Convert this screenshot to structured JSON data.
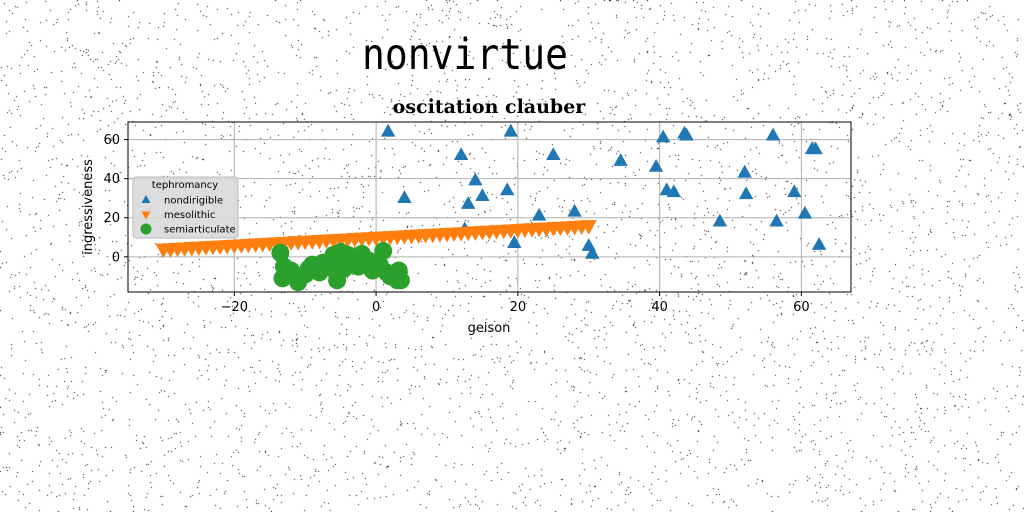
{
  "page": {
    "title": "nonvirtue"
  },
  "chart_data": {
    "type": "scatter",
    "title": "oscitation clauber",
    "xlabel": "geison",
    "ylabel": "ingressiveness",
    "xlim": [
      -35,
      67
    ],
    "ylim": [
      -18,
      69
    ],
    "xticks": [
      -20,
      0,
      20,
      40,
      60
    ],
    "yticks": [
      0,
      20,
      40,
      60
    ],
    "grid": true,
    "legend": {
      "title": "tephromancy",
      "placement": "upper-left"
    },
    "series": [
      {
        "name": "nondirigible",
        "marker": "triangle-up",
        "color": "#1f77b4",
        "points": [
          [
            1.7,
            64
          ],
          [
            4,
            30
          ],
          [
            12,
            52
          ],
          [
            12.5,
            14
          ],
          [
            13,
            27
          ],
          [
            14,
            39
          ],
          [
            15,
            31
          ],
          [
            18.5,
            34
          ],
          [
            19,
            64
          ],
          [
            19.5,
            7
          ],
          [
            23,
            21
          ],
          [
            25,
            52
          ],
          [
            28,
            23
          ],
          [
            30,
            5.5
          ],
          [
            30.5,
            1.5
          ],
          [
            34.5,
            49
          ],
          [
            39.5,
            46
          ],
          [
            40.5,
            61
          ],
          [
            41,
            34
          ],
          [
            42,
            33
          ],
          [
            43.5,
            63
          ],
          [
            43.8,
            62
          ],
          [
            48.5,
            18
          ],
          [
            52,
            43
          ],
          [
            52.2,
            32
          ],
          [
            56,
            62
          ],
          [
            56.5,
            18
          ],
          [
            59,
            33
          ],
          [
            60.5,
            22
          ],
          [
            61.5,
            55
          ],
          [
            62,
            55
          ],
          [
            62.5,
            6
          ]
        ]
      },
      {
        "name": "mesolithic",
        "marker": "triangle-down",
        "color": "#ff7f0e",
        "points": [
          [
            -30,
            4
          ],
          [
            -29,
            4.2
          ],
          [
            -28,
            4.4
          ],
          [
            -27,
            4.6
          ],
          [
            -26,
            4.8
          ],
          [
            -25,
            5
          ],
          [
            -24,
            5.2
          ],
          [
            -23,
            5.4
          ],
          [
            -22,
            5.6
          ],
          [
            -21,
            5.8
          ],
          [
            -20,
            6
          ],
          [
            -19,
            6.2
          ],
          [
            -18,
            6.4
          ],
          [
            -17,
            6.6
          ],
          [
            -16,
            6.8
          ],
          [
            -15,
            7
          ],
          [
            -14,
            7.2
          ],
          [
            -13,
            7.4
          ],
          [
            -12,
            7.6
          ],
          [
            -11,
            7.8
          ],
          [
            -10,
            8
          ],
          [
            -9,
            8.2
          ],
          [
            -8,
            8.4
          ],
          [
            -7,
            8.6
          ],
          [
            -6,
            8.8
          ],
          [
            -5,
            9
          ],
          [
            -4,
            9.2
          ],
          [
            -3,
            9.4
          ],
          [
            -2,
            9.6
          ],
          [
            -1,
            9.8
          ],
          [
            0,
            10
          ],
          [
            1,
            10.2
          ],
          [
            2,
            10.4
          ],
          [
            3,
            10.6
          ],
          [
            4,
            10.8
          ],
          [
            5,
            11
          ],
          [
            6,
            11.2
          ],
          [
            7,
            11.4
          ],
          [
            8,
            11.6
          ],
          [
            9,
            11.8
          ],
          [
            10,
            12
          ],
          [
            11,
            12.2
          ],
          [
            12,
            12.4
          ],
          [
            13,
            12.6
          ],
          [
            14,
            12.8
          ],
          [
            15,
            13
          ],
          [
            16,
            13.2
          ],
          [
            17,
            13.4
          ],
          [
            18,
            13.6
          ],
          [
            19,
            13.8
          ],
          [
            20,
            14
          ],
          [
            21,
            14.2
          ],
          [
            22,
            14.4
          ],
          [
            23,
            14.6
          ],
          [
            24,
            14.8
          ],
          [
            25,
            15
          ],
          [
            26,
            15.2
          ],
          [
            27,
            15.4
          ],
          [
            28,
            15.6
          ],
          [
            29,
            15.8
          ],
          [
            30,
            16
          ]
        ]
      },
      {
        "name": "semiarticulate",
        "marker": "circle",
        "color": "#2ca02c",
        "points": [
          [
            -13.5,
            2
          ],
          [
            -13,
            -5
          ],
          [
            -13.2,
            -11
          ],
          [
            -12,
            -7
          ],
          [
            -11,
            -13
          ],
          [
            -10,
            -9
          ],
          [
            -9.5,
            -6
          ],
          [
            -9,
            -4
          ],
          [
            -8,
            -8
          ],
          [
            -7.5,
            -3
          ],
          [
            -6.5,
            -2
          ],
          [
            -6,
            1
          ],
          [
            -5.8,
            -7
          ],
          [
            -5.5,
            -12
          ],
          [
            -5,
            2.5
          ],
          [
            -4.5,
            -6
          ],
          [
            -4,
            1
          ],
          [
            -3.5,
            0
          ],
          [
            -3,
            -3
          ],
          [
            -2.5,
            -5
          ],
          [
            -2,
            1.5
          ],
          [
            -1.5,
            -4
          ],
          [
            -1,
            -2
          ],
          [
            -0.5,
            -7
          ],
          [
            0,
            -6
          ],
          [
            0.5,
            -4
          ],
          [
            1,
            3
          ],
          [
            1.5,
            -8
          ],
          [
            2,
            -10
          ],
          [
            3,
            -12
          ],
          [
            3.2,
            -7
          ],
          [
            3.5,
            -12
          ]
        ]
      }
    ]
  }
}
